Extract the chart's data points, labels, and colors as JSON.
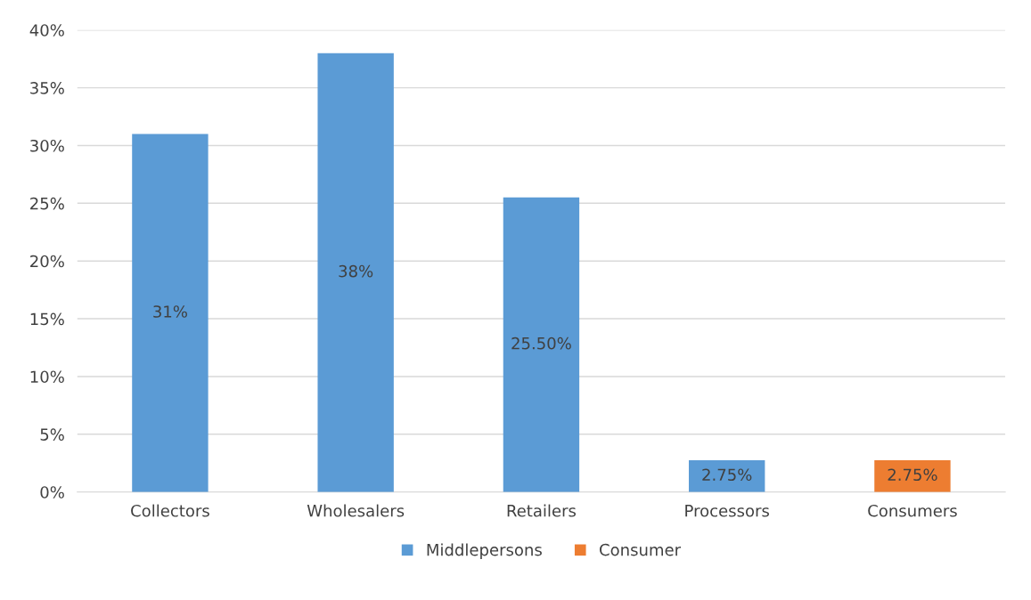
{
  "chart_data": {
    "type": "bar",
    "categories": [
      "Collectors",
      "Wholesalers",
      "Retailers",
      "Processors",
      "Consumers"
    ],
    "series": [
      {
        "name": "Middlepersons",
        "color": "#5b9bd5",
        "values": [
          31,
          38,
          25.5,
          2.75,
          null
        ],
        "value_labels": [
          "31%",
          "38%",
          "25.50%",
          "2.75%",
          null
        ]
      },
      {
        "name": "Consumer",
        "color": "#ed7d31",
        "values": [
          null,
          null,
          null,
          null,
          2.75
        ],
        "value_labels": [
          null,
          null,
          null,
          null,
          "2.75%"
        ]
      }
    ],
    "ylim": [
      0,
      40
    ],
    "yticks": [
      {
        "value": 0,
        "label": "0%"
      },
      {
        "value": 5,
        "label": "5%"
      },
      {
        "value": 10,
        "label": "10%"
      },
      {
        "value": 15,
        "label": "15%"
      },
      {
        "value": 20,
        "label": "20%"
      },
      {
        "value": 25,
        "label": "25%"
      },
      {
        "value": 30,
        "label": "30%"
      },
      {
        "value": 35,
        "label": "35%"
      },
      {
        "value": 40,
        "label": "40%"
      }
    ],
    "grid": "y",
    "legend": "bottom"
  }
}
